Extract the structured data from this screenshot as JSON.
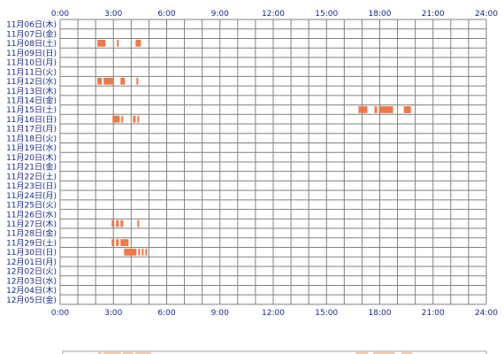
{
  "chart_data": {
    "type": "heatmap",
    "title": "",
    "xlabel": "",
    "ylabel": "",
    "x_range_hours": [
      0,
      24
    ],
    "x_ticks": [
      "0:00",
      "3:00",
      "6:00",
      "9:00",
      "12:00",
      "15:00",
      "18:00",
      "21:00",
      "24:00"
    ],
    "grid": true,
    "colors": {
      "activity": "#f07848",
      "summary": "#f8c8a8",
      "grid": "#808080",
      "label": "#1a2a8a"
    },
    "rows": [
      {
        "label": "11月06日(木)",
        "intervals": []
      },
      {
        "label": "11月07日(金)",
        "intervals": []
      },
      {
        "label": "11月08日(土)",
        "intervals": [
          [
            2.1,
            2.55
          ],
          [
            3.2,
            3.3
          ],
          [
            4.25,
            4.55
          ]
        ]
      },
      {
        "label": "11月09日(日)",
        "intervals": []
      },
      {
        "label": "11月10日(月)",
        "intervals": []
      },
      {
        "label": "11月11日(火)",
        "intervals": []
      },
      {
        "label": "11月12日(水)",
        "intervals": [
          [
            2.1,
            2.35
          ],
          [
            2.45,
            3.0
          ],
          [
            3.4,
            3.65
          ],
          [
            4.3,
            4.4
          ]
        ]
      },
      {
        "label": "11月13日(木)",
        "intervals": []
      },
      {
        "label": "11月14日(金)",
        "intervals": []
      },
      {
        "label": "11月15日(土)",
        "intervals": [
          [
            16.8,
            17.3
          ],
          [
            17.7,
            17.85
          ],
          [
            17.95,
            18.75
          ],
          [
            19.35,
            19.75
          ]
        ]
      },
      {
        "label": "11月16日(日)",
        "intervals": [
          [
            2.95,
            3.35
          ],
          [
            3.45,
            3.55
          ],
          [
            4.1,
            4.25
          ],
          [
            4.35,
            4.45
          ]
        ]
      },
      {
        "label": "11月17日(月)",
        "intervals": []
      },
      {
        "label": "11月18日(火)",
        "intervals": []
      },
      {
        "label": "11月19日(水)",
        "intervals": []
      },
      {
        "label": "11月20日(木)",
        "intervals": []
      },
      {
        "label": "11月21日(金)",
        "intervals": []
      },
      {
        "label": "11月22日(土)",
        "intervals": []
      },
      {
        "label": "11月23日(日)",
        "intervals": []
      },
      {
        "label": "11月24日(月)",
        "intervals": []
      },
      {
        "label": "11月25日(火)",
        "intervals": []
      },
      {
        "label": "11月26日(水)",
        "intervals": []
      },
      {
        "label": "11月27日(木)",
        "intervals": [
          [
            2.9,
            3.05
          ],
          [
            3.15,
            3.3
          ],
          [
            3.4,
            3.55
          ],
          [
            4.35,
            4.45
          ]
        ]
      },
      {
        "label": "11月28日(金)",
        "intervals": []
      },
      {
        "label": "11月29日(土)",
        "intervals": [
          [
            2.9,
            3.05
          ],
          [
            3.15,
            3.3
          ],
          [
            3.4,
            3.85
          ]
        ]
      },
      {
        "label": "11月30日(日)",
        "intervals": [
          [
            3.6,
            4.3
          ],
          [
            4.4,
            4.5
          ],
          [
            4.6,
            4.7
          ],
          [
            4.8,
            4.9
          ]
        ]
      },
      {
        "label": "12月01日(月)",
        "intervals": []
      },
      {
        "label": "12月02日(火)",
        "intervals": []
      },
      {
        "label": "12月03日(水)",
        "intervals": []
      },
      {
        "label": "12月04日(木)",
        "intervals": []
      },
      {
        "label": "12月05日(金)",
        "intervals": []
      }
    ],
    "summary_intervals": [
      [
        2.0,
        2.2
      ],
      [
        2.3,
        3.3
      ],
      [
        3.4,
        4.0
      ],
      [
        4.1,
        5.0
      ],
      [
        16.6,
        17.3
      ],
      [
        17.6,
        18.8
      ],
      [
        19.2,
        19.8
      ]
    ]
  }
}
